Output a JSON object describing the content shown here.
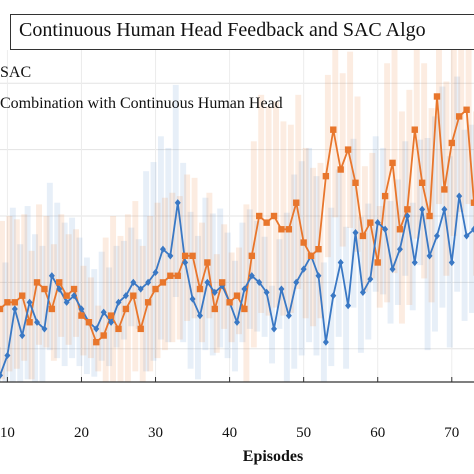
{
  "chart_data": {
    "type": "line",
    "title": "Continuous Human Head Feedback and SAC Algo",
    "xlabel": "Episodes",
    "ylabel": "",
    "xlim": [
      9,
      73
    ],
    "ylim": [
      0,
      100
    ],
    "xticks": [
      "10",
      "20",
      "30",
      "40",
      "50",
      "60",
      "70"
    ],
    "grid": true,
    "legend_position": "top-left",
    "series": [
      {
        "name": "SAC",
        "color": "#3a78c4",
        "marker": "diamond",
        "x": [
          9,
          10,
          11,
          12,
          13,
          14,
          15,
          16,
          17,
          18,
          19,
          20,
          21,
          22,
          23,
          24,
          25,
          26,
          27,
          28,
          29,
          30,
          31,
          32,
          33,
          34,
          35,
          36,
          37,
          38,
          39,
          40,
          41,
          42,
          43,
          44,
          45,
          46,
          47,
          48,
          49,
          50,
          51,
          52,
          53,
          54,
          55,
          56,
          57,
          58,
          59,
          60,
          61,
          62,
          63,
          64,
          65,
          66,
          67,
          68,
          69,
          70,
          71,
          72,
          73
        ],
        "values": [
          2,
          8,
          22,
          14,
          24,
          18,
          16,
          32,
          28,
          24,
          26,
          22,
          18,
          16,
          21,
          18,
          24,
          26,
          30,
          28,
          30,
          33,
          40,
          38,
          54,
          36,
          25,
          20,
          30,
          27,
          29,
          24,
          18,
          28,
          32,
          30,
          27,
          16,
          28,
          20,
          30,
          34,
          38,
          32,
          12,
          26,
          36,
          23,
          45,
          27,
          31,
          48,
          46,
          34,
          40,
          50,
          36,
          52,
          38,
          44,
          52,
          36,
          56,
          44,
          46
        ]
      },
      {
        "name": "Combination with Continuous Human Head",
        "color": "#e8762c",
        "marker": "square",
        "x": [
          9,
          10,
          11,
          12,
          13,
          14,
          15,
          16,
          17,
          18,
          19,
          20,
          21,
          22,
          23,
          24,
          25,
          26,
          27,
          28,
          29,
          30,
          31,
          32,
          33,
          34,
          35,
          36,
          37,
          38,
          39,
          40,
          41,
          42,
          43,
          44,
          45,
          46,
          47,
          48,
          49,
          50,
          51,
          52,
          53,
          54,
          55,
          56,
          57,
          58,
          59,
          60,
          61,
          62,
          63,
          64,
          65,
          66,
          67,
          68,
          69,
          70,
          71,
          72,
          73
        ],
        "values": [
          22,
          24,
          24,
          26,
          18,
          30,
          28,
          22,
          30,
          26,
          28,
          20,
          18,
          12,
          14,
          20,
          16,
          22,
          26,
          16,
          24,
          28,
          30,
          32,
          32,
          38,
          38,
          28,
          36,
          22,
          30,
          24,
          26,
          22,
          38,
          50,
          48,
          50,
          46,
          46,
          54,
          42,
          38,
          40,
          62,
          76,
          64,
          70,
          60,
          44,
          48,
          36,
          56,
          66,
          46,
          52,
          76,
          60,
          50,
          86,
          58,
          72,
          80,
          82,
          54
        ]
      }
    ]
  }
}
